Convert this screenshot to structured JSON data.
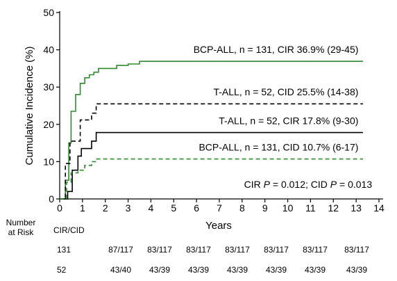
{
  "chart_data": {
    "type": "line",
    "title": "",
    "xlabel": "Years",
    "ylabel": "Cumulative Incidence (%)",
    "xlim": [
      0,
      14
    ],
    "ylim": [
      0,
      50
    ],
    "x_ticks": [
      "0",
      "1",
      "2",
      "3",
      "4",
      "5",
      "6",
      "7",
      "8",
      "9",
      "10",
      "11",
      "12",
      "13",
      "14"
    ],
    "y_ticks": [
      "0",
      "10",
      "20",
      "30",
      "40",
      "50"
    ],
    "grid": false,
    "step": true,
    "series": [
      {
        "name": "BCP-ALL, n = 131, CIR 36.9% (29-45)",
        "color": "#2e8b2e",
        "dash": "solid",
        "points": [
          [
            0,
            0
          ],
          [
            0.2,
            0
          ],
          [
            0.25,
            5
          ],
          [
            0.4,
            15
          ],
          [
            0.5,
            23.5
          ],
          [
            0.7,
            28
          ],
          [
            0.9,
            31
          ],
          [
            1.1,
            32.5
          ],
          [
            1.3,
            33.3
          ],
          [
            1.5,
            34
          ],
          [
            1.7,
            35
          ],
          [
            2.5,
            35.8
          ],
          [
            3,
            36.2
          ],
          [
            3.5,
            36.9
          ],
          [
            13.3,
            36.9
          ]
        ]
      },
      {
        "name": "T-ALL, n = 52, CID 25.5% (14-38)",
        "color": "#000000",
        "dash": "dashed",
        "points": [
          [
            0,
            0
          ],
          [
            0.2,
            0
          ],
          [
            0.25,
            9.5
          ],
          [
            0.45,
            15.5
          ],
          [
            0.9,
            21.2
          ],
          [
            1.2,
            21.2
          ],
          [
            1.4,
            23
          ],
          [
            1.6,
            25.5
          ],
          [
            13.3,
            25.5
          ]
        ]
      },
      {
        "name": "T-ALL, n = 52, CIR 17.8% (9-30)",
        "color": "#000000",
        "dash": "solid",
        "points": [
          [
            0,
            0
          ],
          [
            0.2,
            0
          ],
          [
            0.35,
            2
          ],
          [
            0.55,
            7.7
          ],
          [
            0.8,
            11.5
          ],
          [
            0.95,
            13.5
          ],
          [
            1.4,
            15.5
          ],
          [
            1.6,
            17.8
          ],
          [
            13.3,
            17.8
          ]
        ]
      },
      {
        "name": "BCP-ALL, n = 131, CID 10.7% (6-17)",
        "color": "#2e8b2e",
        "dash": "dashed",
        "points": [
          [
            0,
            0
          ],
          [
            0.2,
            0
          ],
          [
            0.3,
            4.5
          ],
          [
            0.5,
            7
          ],
          [
            0.8,
            7.7
          ],
          [
            1.1,
            9
          ],
          [
            1.4,
            10
          ],
          [
            1.6,
            10.7
          ],
          [
            13.3,
            10.7
          ]
        ]
      }
    ],
    "annotations": [
      {
        "text": "BCP-ALL, n = 131, CIR 36.9% (29-45)",
        "x": 13.1,
        "y": 39.2
      },
      {
        "text": "T-ALL, n = 52, CID 25.5% (14-38)",
        "x": 13.1,
        "y": 27.8
      },
      {
        "text": "T-ALL, n = 52, CIR 17.8% (9-30)",
        "x": 13.1,
        "y": 20.1
      },
      {
        "text": "BCP-ALL, n = 131, CID 10.7% (6-17)",
        "x": 13.1,
        "y": 13.0
      },
      {
        "text_parts": [
          "CIR ",
          "P",
          " = 0.012; CID ",
          "P",
          " = 0.013"
        ],
        "x": 13.7,
        "y": 3.0
      }
    ]
  },
  "risk_table": {
    "header_line1": "Number",
    "header_line2": "at Risk",
    "subheader": "CIR/CID",
    "rows": [
      {
        "label": "131",
        "values": [
          "87/117",
          "83/117",
          "83/117",
          "83/117",
          "83/117",
          "83/117",
          "83/117"
        ]
      },
      {
        "label": "52",
        "values": [
          "43/40",
          "43/39",
          "43/39",
          "43/39",
          "43/39",
          "43/39",
          "43/39"
        ]
      }
    ]
  }
}
